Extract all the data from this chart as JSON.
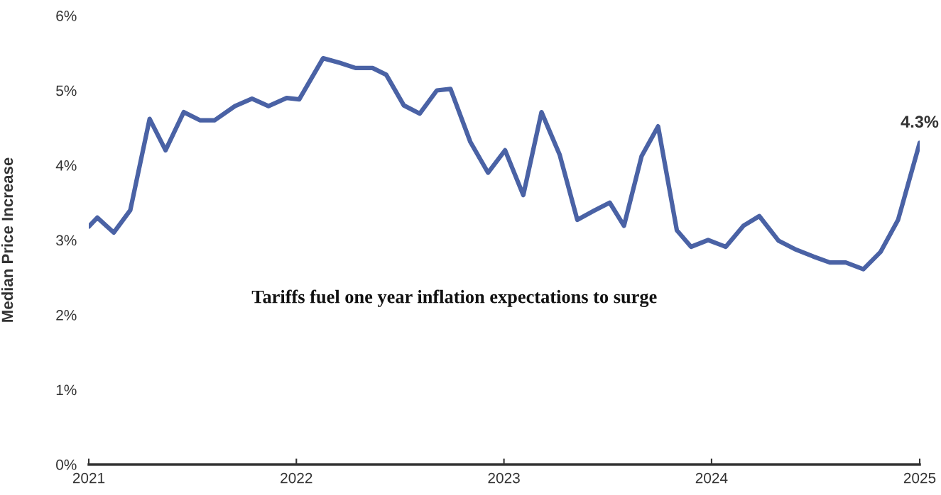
{
  "chart_data": {
    "type": "line",
    "ylabel": "Median Price Increase",
    "annotations": [
      "Tariffs fuel one year inflation expectations to surge"
    ],
    "x": [
      "2021-01-01",
      "2021-01-16",
      "2021-02-14",
      "2021-03-15",
      "2021-04-18",
      "2021-05-16",
      "2021-06-17",
      "2021-07-16",
      "2021-08-10",
      "2021-09-15",
      "2021-10-15",
      "2021-11-13",
      "2021-12-15",
      "2022-01-06",
      "2022-02-17",
      "2022-03-18",
      "2022-04-15",
      "2022-05-15",
      "2022-06-08",
      "2022-07-09",
      "2022-08-06",
      "2022-09-05",
      "2022-09-29",
      "2022-11-03",
      "2022-12-04",
      "2023-01-03",
      "2023-02-04",
      "2023-03-08",
      "2023-04-09",
      "2023-05-10",
      "2023-06-08",
      "2023-07-06",
      "2023-07-31",
      "2023-08-31",
      "2023-09-29",
      "2023-11-01",
      "2023-11-26",
      "2023-12-26",
      "2024-01-26",
      "2024-02-26",
      "2024-03-25",
      "2024-04-28",
      "2024-05-29",
      "2024-06-28",
      "2024-07-27",
      "2024-08-24",
      "2024-09-24",
      "2024-10-24",
      "2024-11-24",
      "2025-01-01"
    ],
    "series": [
      {
        "color": "#4a62a5",
        "values": [
          3.18,
          3.3,
          3.1,
          3.4,
          4.62,
          4.2,
          4.71,
          4.6,
          4.6,
          4.79,
          4.89,
          4.79,
          4.9,
          4.88,
          5.43,
          5.37,
          5.3,
          5.3,
          5.21,
          4.8,
          4.69,
          5.0,
          5.02,
          4.31,
          3.9,
          4.2,
          3.6,
          4.71,
          4.14,
          3.27,
          3.39,
          3.5,
          3.19,
          4.12,
          4.52,
          3.13,
          2.91,
          3.0,
          2.91,
          3.19,
          3.32,
          2.99,
          2.87,
          2.78,
          2.7,
          2.7,
          2.61,
          2.84,
          3.27,
          4.3
        ],
        "value_labels": [
          null,
          null,
          null,
          null,
          null,
          null,
          null,
          null,
          null,
          null,
          null,
          null,
          null,
          null,
          null,
          null,
          null,
          null,
          null,
          null,
          null,
          null,
          null,
          null,
          null,
          null,
          null,
          null,
          null,
          null,
          null,
          null,
          null,
          null,
          null,
          null,
          null,
          null,
          null,
          null,
          null,
          null,
          null,
          null,
          null,
          null,
          null,
          null,
          null,
          "4.3%"
        ]
      }
    ],
    "xlim": [
      "2021-01-01",
      "2025-01-01"
    ],
    "xticks": [
      {
        "value": "2021-01-01",
        "label": "2021"
      },
      {
        "value": "2022-01-01",
        "label": "2022"
      },
      {
        "value": "2023-01-01",
        "label": "2023"
      },
      {
        "value": "2024-01-01",
        "label": "2024"
      },
      {
        "value": "2025-01-01",
        "label": "2025"
      }
    ],
    "ylim": [
      0,
      6
    ],
    "yticks": [
      {
        "value": 0,
        "label": "0%"
      },
      {
        "value": 1,
        "label": "1%"
      },
      {
        "value": 2,
        "label": "2%"
      },
      {
        "value": 3,
        "label": "3%"
      },
      {
        "value": 4,
        "label": "4%"
      },
      {
        "value": 5,
        "label": "5%"
      },
      {
        "value": 6,
        "label": "6%"
      }
    ],
    "grid": false,
    "legend": false,
    "marker": "none",
    "line_style": "solid"
  }
}
